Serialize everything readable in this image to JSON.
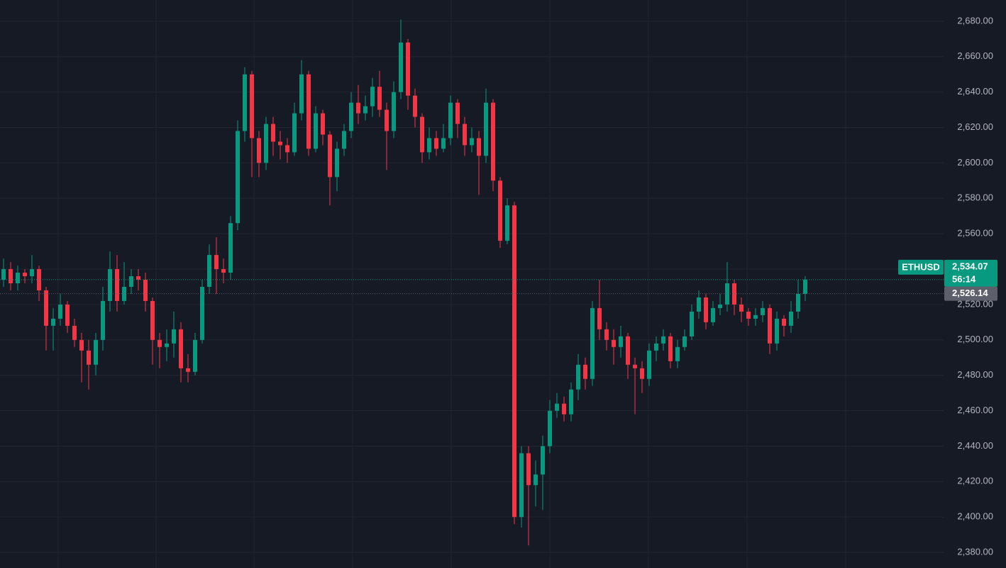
{
  "chart_data": {
    "type": "candlestick",
    "symbol": "ETHUSD",
    "countdown": "56:14",
    "last_price": {
      "value": 2534.07,
      "label": "2,534.07"
    },
    "ref_price": {
      "value": 2526.14,
      "label": "2,526.14"
    },
    "up_color": "#089981",
    "down_color": "#f23645",
    "ref_color": "#5d606b",
    "grid": true,
    "ylim": [
      2371.2,
      2692
    ],
    "yticks": [
      {
        "value": 2380,
        "label": "2,380.00"
      },
      {
        "value": 2400,
        "label": "2,400.00"
      },
      {
        "value": 2420,
        "label": "2,420.00"
      },
      {
        "value": 2440,
        "label": "2,440.00"
      },
      {
        "value": 2460,
        "label": "2,460.00"
      },
      {
        "value": 2480,
        "label": "2,480.00"
      },
      {
        "value": 2500,
        "label": "2,500.00"
      },
      {
        "value": 2520,
        "label": "2,520.00"
      },
      {
        "value": 2540,
        "label": "2,540.00"
      },
      {
        "value": 2560,
        "label": "2,560.00"
      },
      {
        "value": 2580,
        "label": "2,580.00"
      },
      {
        "value": 2600,
        "label": "2,600.00"
      },
      {
        "value": 2620,
        "label": "2,620.00"
      },
      {
        "value": 2640,
        "label": "2,640.00"
      },
      {
        "value": 2660,
        "label": "2,660.00"
      },
      {
        "value": 2680,
        "label": "2,680.00"
      }
    ],
    "open": [
      2534,
      2540,
      2532,
      2538,
      2536,
      2540,
      2528,
      2508,
      2512,
      2520,
      2508,
      2500,
      2494,
      2486,
      2500,
      2522,
      2540,
      2522,
      2530,
      2536,
      2534,
      2522,
      2500,
      2496,
      2498,
      2506,
      2484,
      2482,
      2500,
      2530,
      2548,
      2540,
      2538,
      2566,
      2618,
      2650,
      2614,
      2600,
      2622,
      2612,
      2610,
      2606,
      2628,
      2650,
      2608,
      2628,
      2616,
      2592,
      2608,
      2618,
      2634,
      2628,
      2632,
      2643,
      2630,
      2618,
      2640,
      2668,
      2638,
      2626,
      2606,
      2614,
      2608,
      2614,
      2634,
      2622,
      2610,
      2614,
      2604,
      2634,
      2590,
      2556,
      2576,
      2400,
      2436,
      2418,
      2424,
      2440,
      2460,
      2464,
      2458,
      2472,
      2486,
      2478,
      2518,
      2506,
      2500,
      2496,
      2502,
      2486,
      2484,
      2478,
      2494,
      2498,
      2502,
      2488,
      2496,
      2502,
      2516,
      2524,
      2510,
      2518,
      2520,
      2532,
      2520,
      2516,
      2512,
      2514,
      2518,
      2498,
      2512,
      2508,
      2516,
      2526
    ],
    "high": [
      2546,
      2544,
      2542,
      2540,
      2548,
      2542,
      2530,
      2518,
      2526,
      2522,
      2512,
      2504,
      2500,
      2504,
      2530,
      2550,
      2548,
      2544,
      2540,
      2540,
      2538,
      2524,
      2504,
      2506,
      2516,
      2510,
      2492,
      2504,
      2534,
      2554,
      2558,
      2546,
      2570,
      2624,
      2654,
      2652,
      2618,
      2626,
      2626,
      2618,
      2614,
      2634,
      2658,
      2652,
      2632,
      2630,
      2618,
      2612,
      2622,
      2640,
      2644,
      2638,
      2648,
      2652,
      2634,
      2646,
      2681,
      2670,
      2642,
      2628,
      2620,
      2618,
      2622,
      2638,
      2636,
      2626,
      2620,
      2618,
      2642,
      2636,
      2592,
      2580,
      2578,
      2440,
      2440,
      2432,
      2446,
      2466,
      2470,
      2468,
      2476,
      2492,
      2490,
      2522,
      2534,
      2510,
      2506,
      2508,
      2504,
      2490,
      2488,
      2498,
      2502,
      2506,
      2504,
      2500,
      2506,
      2520,
      2528,
      2526,
      2522,
      2526,
      2544,
      2534,
      2524,
      2518,
      2518,
      2522,
      2520,
      2516,
      2514,
      2522,
      2534,
      2536
    ],
    "low": [
      2530,
      2528,
      2528,
      2532,
      2532,
      2522,
      2494,
      2494,
      2508,
      2504,
      2496,
      2476,
      2472,
      2480,
      2494,
      2516,
      2516,
      2520,
      2526,
      2528,
      2516,
      2486,
      2484,
      2488,
      2490,
      2476,
      2476,
      2480,
      2498,
      2526,
      2526,
      2532,
      2534,
      2562,
      2612,
      2592,
      2592,
      2596,
      2604,
      2602,
      2600,
      2604,
      2624,
      2604,
      2606,
      2610,
      2576,
      2584,
      2604,
      2614,
      2622,
      2624,
      2626,
      2626,
      2596,
      2614,
      2636,
      2630,
      2620,
      2600,
      2602,
      2604,
      2606,
      2610,
      2614,
      2604,
      2606,
      2582,
      2600,
      2584,
      2552,
      2554,
      2396,
      2394,
      2384,
      2406,
      2404,
      2436,
      2456,
      2454,
      2454,
      2466,
      2472,
      2474,
      2500,
      2494,
      2486,
      2490,
      2478,
      2458,
      2470,
      2474,
      2488,
      2494,
      2484,
      2484,
      2494,
      2500,
      2512,
      2506,
      2508,
      2514,
      2516,
      2514,
      2510,
      2508,
      2508,
      2510,
      2492,
      2494,
      2502,
      2504,
      2512,
      2522
    ],
    "close": [
      2540,
      2532,
      2538,
      2536,
      2540,
      2528,
      2508,
      2512,
      2520,
      2508,
      2500,
      2494,
      2486,
      2500,
      2522,
      2540,
      2522,
      2530,
      2536,
      2534,
      2522,
      2500,
      2496,
      2498,
      2506,
      2484,
      2482,
      2500,
      2530,
      2548,
      2540,
      2538,
      2566,
      2618,
      2650,
      2614,
      2600,
      2622,
      2612,
      2610,
      2606,
      2628,
      2650,
      2608,
      2628,
      2616,
      2592,
      2608,
      2618,
      2634,
      2628,
      2632,
      2643,
      2630,
      2618,
      2640,
      2668,
      2638,
      2626,
      2606,
      2614,
      2608,
      2614,
      2634,
      2622,
      2610,
      2614,
      2604,
      2634,
      2590,
      2556,
      2576,
      2400,
      2436,
      2418,
      2424,
      2440,
      2460,
      2464,
      2458,
      2472,
      2486,
      2478,
      2518,
      2506,
      2500,
      2496,
      2502,
      2486,
      2484,
      2478,
      2494,
      2498,
      2502,
      2488,
      2496,
      2502,
      2516,
      2524,
      2510,
      2518,
      2520,
      2532,
      2520,
      2516,
      2512,
      2514,
      2518,
      2498,
      2512,
      2508,
      2516,
      2526,
      2534.07
    ]
  }
}
